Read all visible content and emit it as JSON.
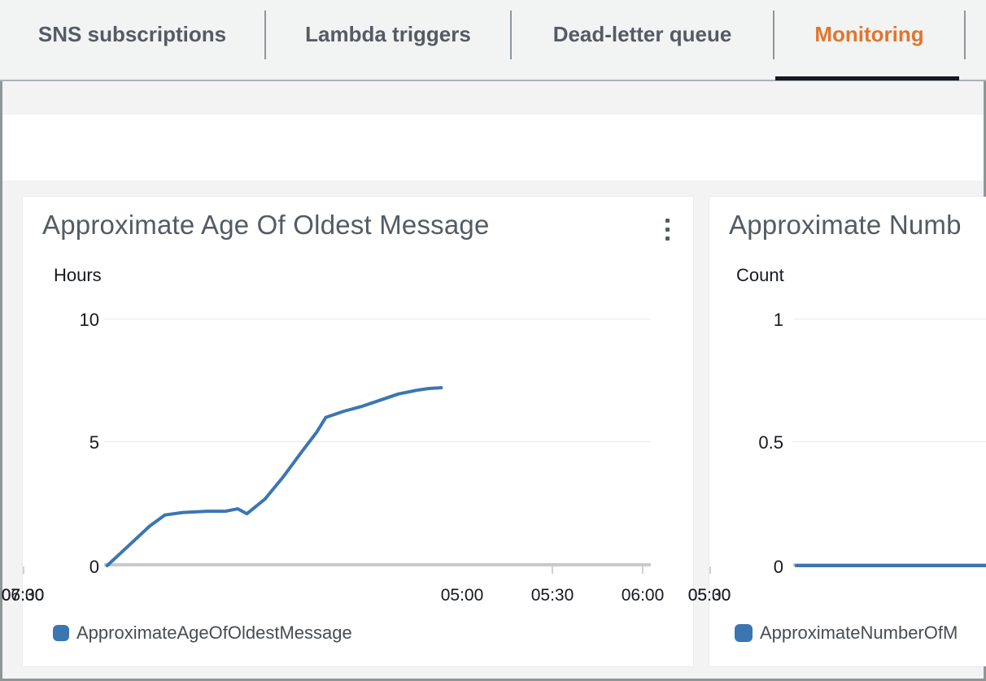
{
  "tabs": {
    "items": [
      {
        "label": "SNS subscriptions",
        "active": false
      },
      {
        "label": "Lambda triggers",
        "active": false
      },
      {
        "label": "Dead-letter queue",
        "active": false
      },
      {
        "label": "Monitoring",
        "active": true
      }
    ],
    "active_color": "#e0762e"
  },
  "charts": [
    {
      "title": "Approximate Age Of Oldest Message",
      "unit": "Hours",
      "y_ticks": [
        "10",
        "5",
        "0"
      ],
      "x_ticks": [
        "05:00",
        "05:30",
        "06:00",
        "06:30",
        "07:00",
        "07:30"
      ],
      "legend_label": "ApproximateAgeOfOldestMessage"
    },
    {
      "title": "Approximate Numb",
      "unit": "Count",
      "y_ticks": [
        "1",
        "0.5",
        "0"
      ],
      "x_ticks": [
        "05:00",
        "05:30"
      ],
      "legend_label": "ApproximateNumberOfM"
    }
  ],
  "chart_data": [
    {
      "type": "line",
      "title": "Approximate Age Of Oldest Message",
      "ylabel": "Hours",
      "ylim": [
        0,
        10
      ],
      "y_tick_values": [
        0,
        5,
        10
      ],
      "x_tick_labels": [
        "05:00",
        "05:30",
        "06:00",
        "06:30",
        "07:00",
        "07:30"
      ],
      "x_unit": "minutes-since-midnight",
      "x_domain_minutes": [
        272,
        452
      ],
      "grid": true,
      "legend_position": "bottom-left",
      "series": [
        {
          "name": "ApproximateAgeOfOldestMessage",
          "color": "#3b76b0",
          "points": [
            [
              273,
              0
            ],
            [
              280,
              0.8
            ],
            [
              287,
              1.6
            ],
            [
              292,
              2.05
            ],
            [
              298,
              2.15
            ],
            [
              306,
              2.2
            ],
            [
              312,
              2.2
            ],
            [
              316,
              2.3
            ],
            [
              319,
              2.1
            ],
            [
              325,
              2.7
            ],
            [
              331,
              3.6
            ],
            [
              337,
              4.6
            ],
            [
              342,
              5.4
            ],
            [
              345,
              6.0
            ],
            [
              351,
              6.25
            ],
            [
              357,
              6.45
            ],
            [
              363,
              6.7
            ],
            [
              369,
              6.95
            ],
            [
              375,
              7.1
            ],
            [
              379,
              7.17
            ],
            [
              383,
              7.2
            ]
          ]
        }
      ]
    },
    {
      "type": "line",
      "title": "Approximate Numb",
      "ylabel": "Count",
      "ylim": [
        0,
        1
      ],
      "y_tick_values": [
        0,
        0.5,
        1
      ],
      "x_tick_labels": [
        "05:00",
        "05:30"
      ],
      "x_unit": "minutes-since-midnight",
      "x_domain_minutes": [
        272,
        452
      ],
      "grid": true,
      "legend_position": "bottom-left",
      "series": [
        {
          "name": "ApproximateNumberOfM",
          "color": "#3b76b0",
          "points": [
            [
              273,
              0
            ],
            [
              452,
              0
            ]
          ]
        }
      ]
    }
  ]
}
